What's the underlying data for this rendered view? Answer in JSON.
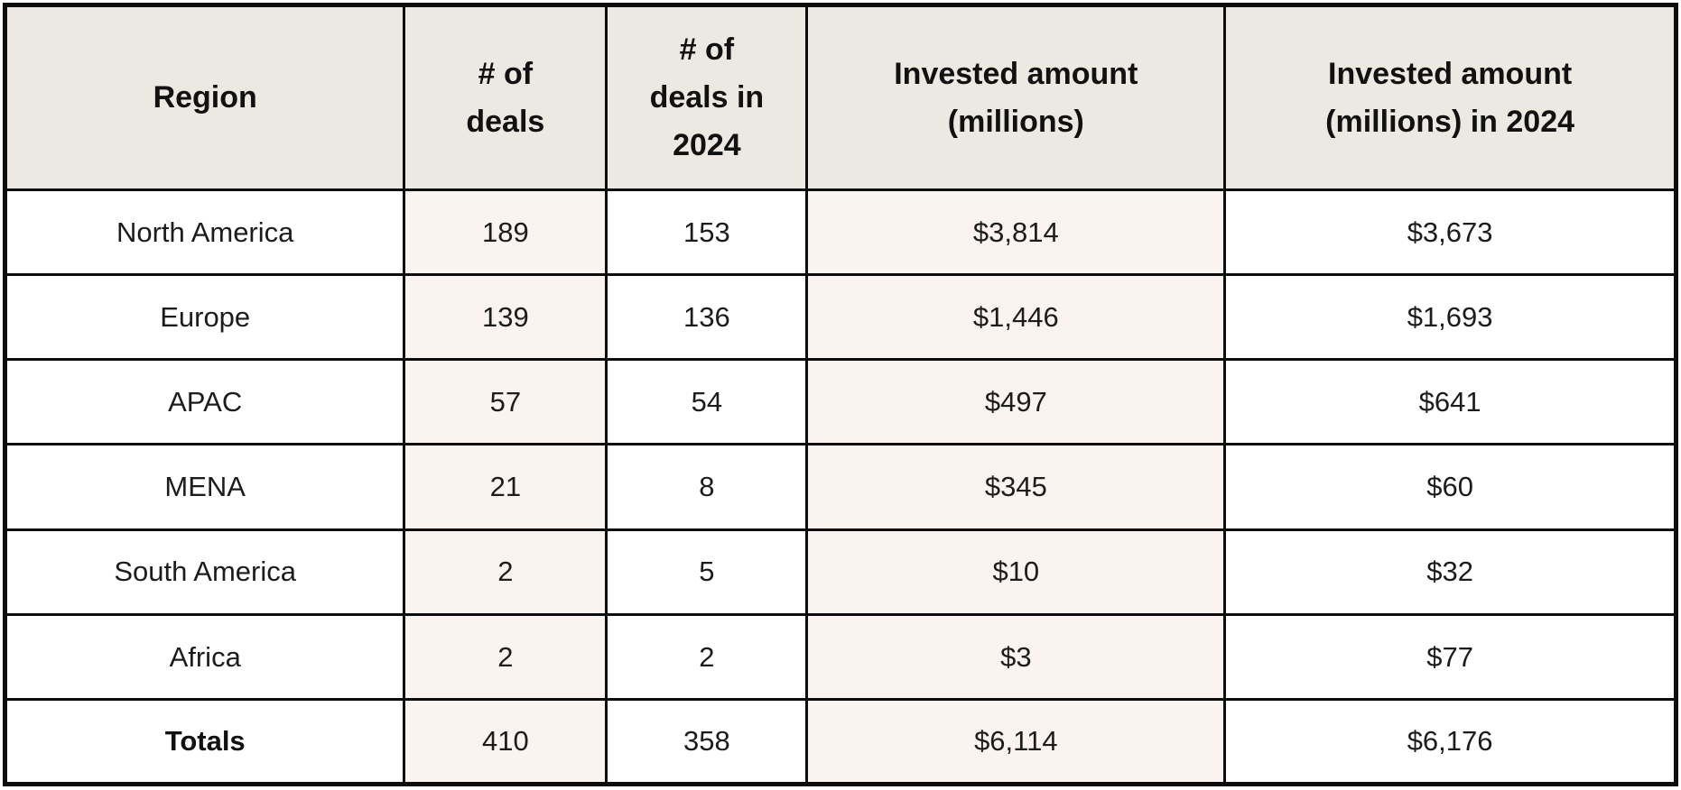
{
  "table": {
    "columns": [
      {
        "label": "Region"
      },
      {
        "label": "# of deals"
      },
      {
        "label": "# of deals in 2024"
      },
      {
        "label": "Invested amount (millions)"
      },
      {
        "label": "Invested amount (millions) in 2024"
      }
    ],
    "rows": [
      {
        "region": "North America",
        "deals": "189",
        "deals_2024": "153",
        "invested": "$3,814",
        "invested_2024": "$3,673"
      },
      {
        "region": "Europe",
        "deals": "139",
        "deals_2024": "136",
        "invested": "$1,446",
        "invested_2024": "$1,693"
      },
      {
        "region": "APAC",
        "deals": "57",
        "deals_2024": "54",
        "invested": "$497",
        "invested_2024": "$641"
      },
      {
        "region": "MENA",
        "deals": "21",
        "deals_2024": "8",
        "invested": "$345",
        "invested_2024": "$60"
      },
      {
        "region": "South America",
        "deals": "2",
        "deals_2024": "5",
        "invested": "$10",
        "invested_2024": "$32"
      },
      {
        "region": "Africa",
        "deals": "2",
        "deals_2024": "2",
        "invested": "$3",
        "invested_2024": "$77"
      },
      {
        "region": "Totals",
        "deals": "410",
        "deals_2024": "358",
        "invested": "$6,114",
        "invested_2024": "$6,176"
      }
    ],
    "colors": {
      "header_background": "#ebe9e2",
      "tinted_column_background": "#faf3ef",
      "plain_column_background": "#ffffff",
      "border": "#0d0d0d",
      "text": "#1c1c1c"
    }
  },
  "chart_data": {
    "type": "table",
    "title": "",
    "columns": [
      "Region",
      "# of deals",
      "# of deals in 2024",
      "Invested amount (millions)",
      "Invested amount (millions) in 2024"
    ],
    "rows": [
      [
        "North America",
        189,
        153,
        "$3,814",
        "$3,673"
      ],
      [
        "Europe",
        139,
        136,
        "$1,446",
        "$1,693"
      ],
      [
        "APAC",
        57,
        54,
        "$497",
        "$641"
      ],
      [
        "MENA",
        21,
        8,
        "$345",
        "$60"
      ],
      [
        "South America",
        2,
        5,
        "$10",
        "$32"
      ],
      [
        "Africa",
        2,
        2,
        "$3",
        "$77"
      ],
      [
        "Totals",
        410,
        358,
        "$6,114",
        "$6,176"
      ]
    ],
    "layout_hints": {
      "header_fill": "#ebe9e2",
      "tinted_columns": [
        1,
        3
      ],
      "tint_fill": "#faf3ef",
      "grid": "on",
      "totals_row_bold_label": true
    }
  }
}
